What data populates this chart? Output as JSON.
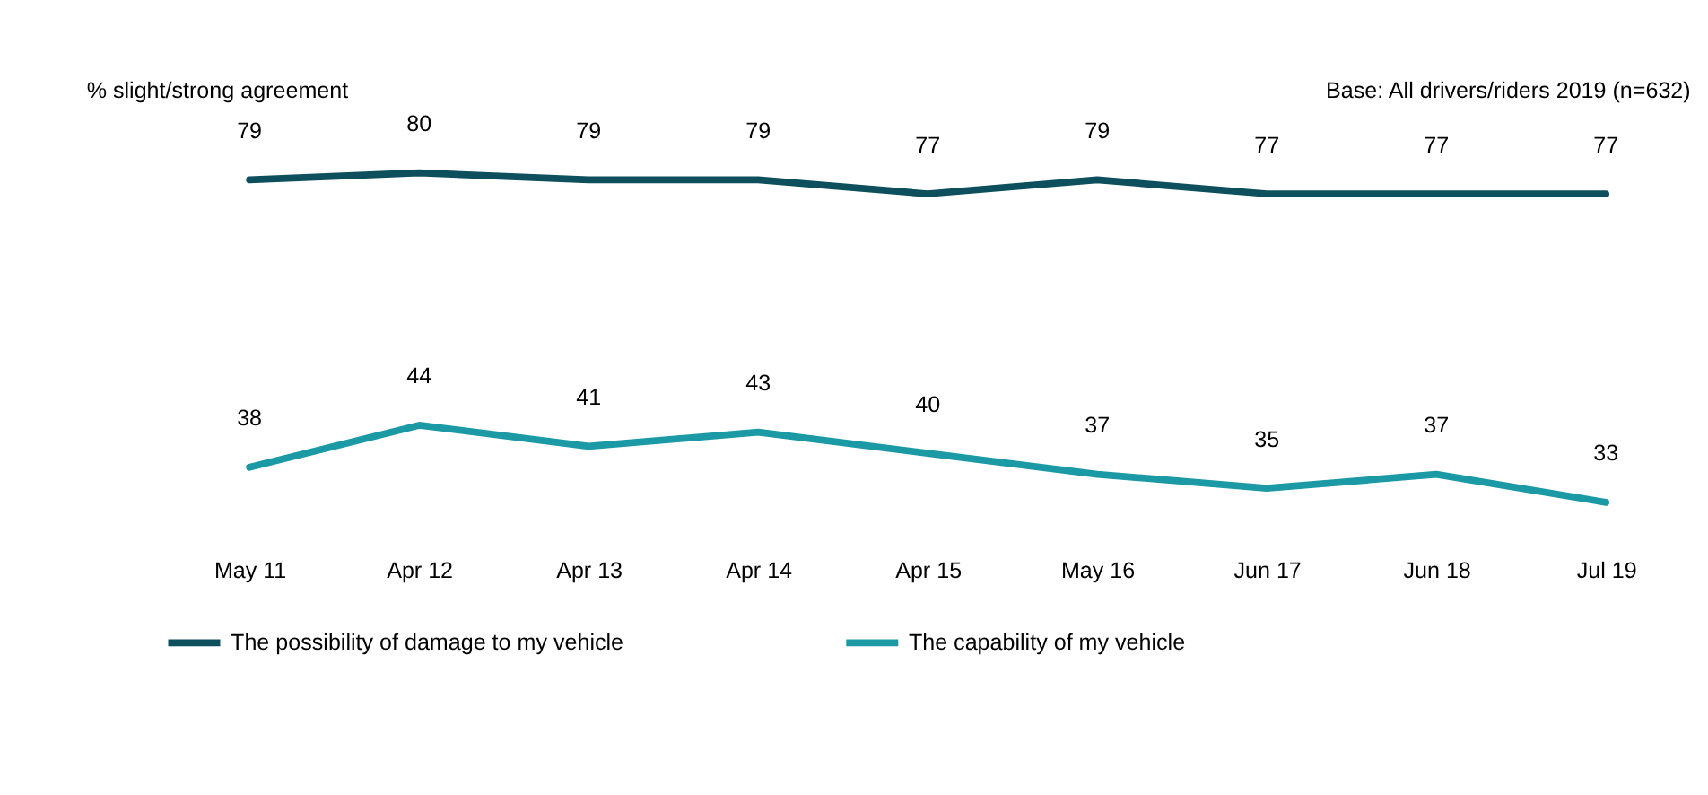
{
  "chart_data": {
    "type": "line",
    "ylabel": "% slight/strong agreement",
    "annotations": [
      "Base: All drivers/riders 2019 (n=632)"
    ],
    "categories": [
      "May 11",
      "Apr 12",
      "Apr 13",
      "Apr 14",
      "Apr 15",
      "May 16",
      "Jun 17",
      "Jun 18",
      "Jul 19"
    ],
    "series": [
      {
        "name": "The possibility of damage to my vehicle",
        "color": "#0d4f5c",
        "values": [
          79,
          80,
          79,
          79,
          77,
          79,
          77,
          77,
          77
        ]
      },
      {
        "name": "The capability of my vehicle",
        "color": "#1b9aa6",
        "values": [
          38,
          44,
          41,
          43,
          40,
          37,
          35,
          37,
          33
        ]
      }
    ],
    "data_labels": true,
    "legend": "bottom",
    "grid": false,
    "marker": "none",
    "line_style": "solid"
  }
}
